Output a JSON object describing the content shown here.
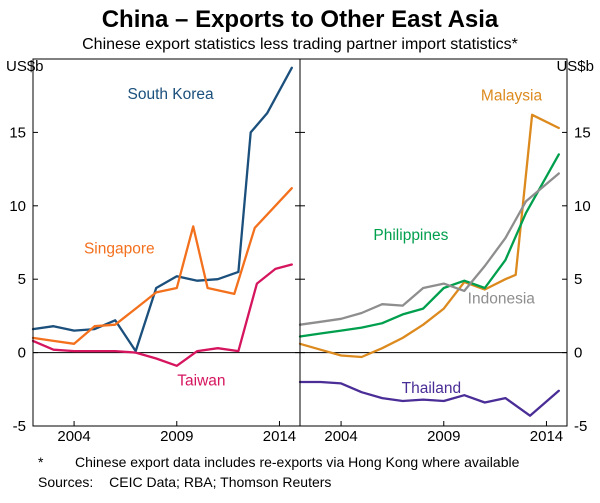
{
  "chart_data": {
    "type": "line",
    "title": "China – Exports to Other East Asia",
    "subtitle": "Chinese export statistics less trading partner import statistics*",
    "unit_label": "US$b",
    "ylim": [
      -5,
      20
    ],
    "yticks": [
      -5,
      0,
      5,
      10,
      15
    ],
    "xlim": [
      2002,
      2015
    ],
    "xticks": [
      2004,
      2009,
      2014
    ],
    "grid": "none",
    "legend": "inline-series-labels",
    "panels": [
      {
        "name": "left",
        "series": [
          {
            "name": "South Korea",
            "color": "#1b4f7c",
            "label_pos": {
              "x": 2008.7,
              "y": 17.6
            },
            "x": [
              2002,
              2003,
              2004,
              2005,
              2006,
              2007,
              2008,
              2009,
              2010,
              2011,
              2012,
              2012.6,
              2013.4,
              2014.6
            ],
            "y": [
              1.6,
              1.8,
              1.5,
              1.6,
              2.2,
              0.1,
              4.4,
              5.2,
              4.9,
              5.0,
              5.5,
              15.0,
              16.3,
              19.4
            ]
          },
          {
            "name": "Singapore",
            "color": "#f3701d",
            "label_pos": {
              "x": 2006.2,
              "y": 7.1
            },
            "x": [
              2002,
              2003,
              2004,
              2005,
              2006,
              2007,
              2008,
              2009,
              2009.8,
              2010.5,
              2011.8,
              2012.8,
              2014.6
            ],
            "y": [
              1.0,
              0.8,
              0.6,
              1.8,
              1.9,
              3.0,
              4.1,
              4.4,
              8.6,
              4.4,
              4.0,
              8.5,
              11.2
            ]
          },
          {
            "name": "Taiwan",
            "color": "#d6155f",
            "label_pos": {
              "x": 2010.2,
              "y": -1.9
            },
            "x": [
              2002,
              2003,
              2004,
              2005,
              2006,
              2007,
              2008,
              2009,
              2010,
              2011,
              2012,
              2012.9,
              2013.8,
              2014.6
            ],
            "y": [
              0.8,
              0.2,
              0.1,
              0.1,
              0.1,
              0.0,
              -0.4,
              -0.9,
              0.1,
              0.3,
              0.1,
              4.7,
              5.7,
              6.0
            ]
          }
        ]
      },
      {
        "name": "right",
        "series": [
          {
            "name": "Malaysia",
            "color": "#dc8a1e",
            "label_pos": {
              "x": 2012.3,
              "y": 17.5
            },
            "x": [
              2002,
              2003,
              2004,
              2005,
              2006,
              2007,
              2008,
              2009,
              2010,
              2011,
              2012,
              2012.5,
              2013.3,
              2014.6
            ],
            "y": [
              0.6,
              0.2,
              -0.2,
              -0.3,
              0.3,
              1.0,
              1.9,
              3.0,
              4.8,
              4.3,
              5.0,
              5.3,
              16.2,
              15.3
            ]
          },
          {
            "name": "Philippines",
            "color": "#009f4d",
            "label_pos": {
              "x": 2007.4,
              "y": 8.0
            },
            "x": [
              2002,
              2003,
              2004,
              2005,
              2006,
              2007,
              2008,
              2009,
              2010,
              2011,
              2012,
              2013,
              2014.6
            ],
            "y": [
              1.1,
              1.3,
              1.5,
              1.7,
              2.0,
              2.6,
              3.0,
              4.4,
              4.9,
              4.4,
              6.3,
              9.5,
              13.5
            ]
          },
          {
            "name": "Indonesia",
            "color": "#8e8e8e",
            "label_pos": {
              "x": 2011.8,
              "y": 3.7
            },
            "x": [
              2002,
              2003,
              2004,
              2005,
              2006,
              2007,
              2008,
              2009,
              2010,
              2011,
              2012,
              2013,
              2014.6
            ],
            "y": [
              1.9,
              2.1,
              2.3,
              2.7,
              3.3,
              3.2,
              4.4,
              4.7,
              4.2,
              5.9,
              7.8,
              10.3,
              12.2
            ]
          },
          {
            "name": "Thailand",
            "color": "#4a2d96",
            "label_pos": {
              "x": 2008.4,
              "y": -2.4
            },
            "x": [
              2002,
              2003,
              2004,
              2005,
              2006,
              2007,
              2008,
              2009,
              2010,
              2011,
              2012,
              2013.2,
              2014.6
            ],
            "y": [
              -2.0,
              -2.0,
              -2.1,
              -2.7,
              -3.1,
              -3.3,
              -3.2,
              -3.3,
              -2.9,
              -3.4,
              -3.1,
              -4.3,
              -2.6
            ]
          }
        ]
      }
    ]
  },
  "footnotes": {
    "marker": "*",
    "note": "Chinese export data includes re-exports via Hong Kong where available",
    "sources_label": "Sources:",
    "sources": "CEIC Data; RBA; Thomson Reuters"
  }
}
